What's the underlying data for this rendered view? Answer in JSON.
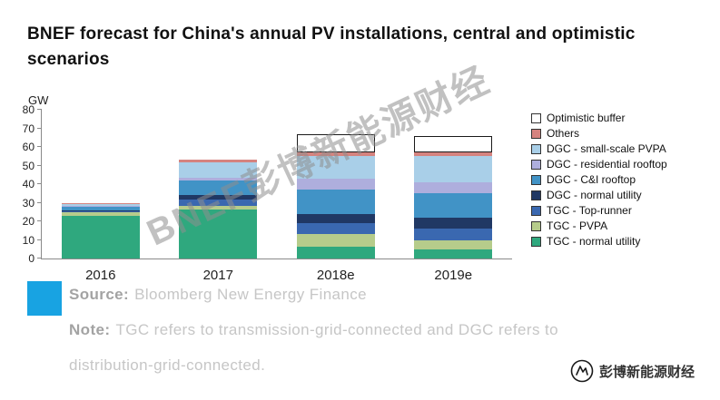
{
  "title": "BNEF forecast for China's annual PV installations, central and optimistic scenarios",
  "watermark": "BNEF彭博新能源财经",
  "footer": {
    "source_label": "Source:",
    "source_text": "Bloomberg New Energy Finance",
    "note_label": "Note:",
    "note_text": "TGC refers to transmission-grid-connected and DGC refers to distribution-grid-connected.",
    "brand": "彭博新能源财经"
  },
  "chart_data": {
    "type": "bar",
    "stacked": true,
    "title": "BNEF forecast for China's annual PV installations, central and optimistic scenarios",
    "xlabel": "",
    "ylabel": "GW",
    "ylim": [
      0,
      80
    ],
    "yticks": [
      0,
      10,
      20,
      30,
      40,
      50,
      60,
      70,
      80
    ],
    "grid": false,
    "legend_position": "right",
    "categories": [
      "2016",
      "2017",
      "2018e",
      "2019e"
    ],
    "series": [
      {
        "name": "TGC - normal utility",
        "color": "#2fa87e",
        "values": [
          23,
          26.5,
          6.5,
          5
        ]
      },
      {
        "name": "TGC - PVPA",
        "color": "#b6cc8b",
        "values": [
          2,
          2,
          6.5,
          5
        ]
      },
      {
        "name": "TGC - Top-runner",
        "color": "#3a68b0",
        "values": [
          0.5,
          3,
          6,
          6
        ]
      },
      {
        "name": "DGC - normal utility",
        "color": "#203864",
        "values": [
          0.5,
          2.5,
          5,
          6
        ]
      },
      {
        "name": "DGC - C&I rooftop",
        "color": "#4193c6",
        "values": [
          2,
          8,
          13,
          13
        ]
      },
      {
        "name": "DGC - residential rooftop",
        "color": "#aeaedd",
        "values": [
          0.5,
          1.5,
          6,
          6
        ]
      },
      {
        "name": "DGC - small-scale PVPA",
        "color": "#a9cfe8",
        "values": [
          1,
          8,
          12,
          14
        ]
      },
      {
        "name": "Others",
        "color": "#d5837f",
        "values": [
          0.5,
          1.5,
          2,
          2
        ]
      },
      {
        "name": "Optimistic buffer",
        "color": "#ffffff",
        "outline": true,
        "values": [
          0,
          0,
          10,
          9
        ]
      }
    ]
  }
}
